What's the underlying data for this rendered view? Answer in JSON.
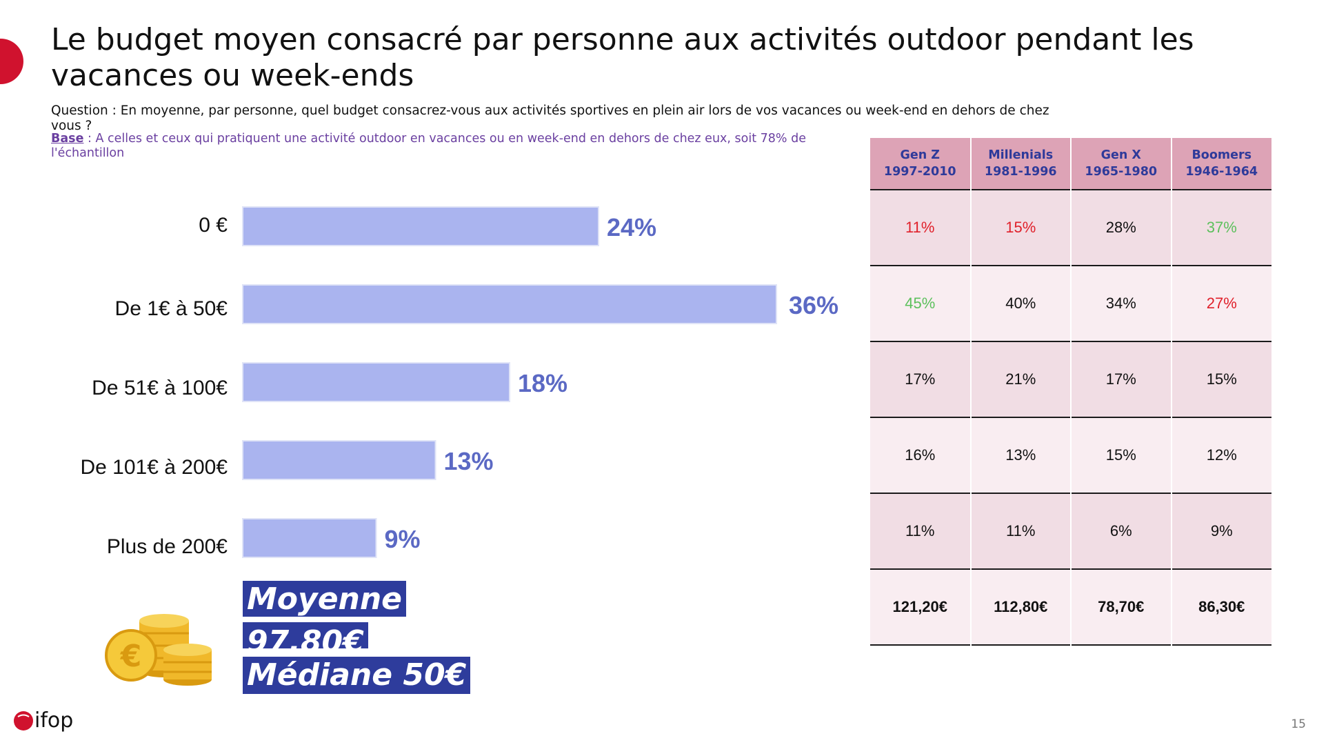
{
  "title": "Le budget moyen consacré par personne aux activités outdoor pendant les vacances ou week-ends",
  "question": "Question : En moyenne, par personne, quel budget consacrez-vous aux activités sportives en plein air lors de vos vacances ou week-end en dehors de chez vous ?",
  "base": {
    "label": "Base",
    "text": " : A celles et ceux qui pratiquent une activité outdoor en vacances ou en week-end en dehors de chez eux, soit 78% de l'échantillon"
  },
  "chart_data": {
    "type": "bar",
    "orientation": "horizontal",
    "categories": [
      "0 €",
      "De 1€ à 50€",
      "De 51€ à 100€",
      "De 101€ à 200€",
      "Plus de 200€"
    ],
    "values": [
      24,
      36,
      18,
      13,
      9
    ],
    "value_labels": [
      "24%",
      "36%",
      "18%",
      "13%",
      "9%"
    ],
    "unit": "%",
    "bar_color": "#aab4ef",
    "label_color": "#5b69c4"
  },
  "stats": {
    "mean_label": "Moyenne",
    "mean_value": "97,80€",
    "median": "Médiane 50€",
    "color": "#2e3c9c"
  },
  "table": {
    "headers": [
      {
        "name": "Gen Z",
        "years": "1997-2010"
      },
      {
        "name": "Millenials",
        "years": "1981-1996"
      },
      {
        "name": "Gen X",
        "years": "1965-1980"
      },
      {
        "name": "Boomers",
        "years": "1946-1964"
      }
    ],
    "rows": [
      [
        {
          "v": "11%",
          "c": "red"
        },
        {
          "v": "15%",
          "c": "red"
        },
        {
          "v": "28%",
          "c": ""
        },
        {
          "v": "37%",
          "c": "green"
        }
      ],
      [
        {
          "v": "45%",
          "c": "green"
        },
        {
          "v": "40%",
          "c": ""
        },
        {
          "v": "34%",
          "c": ""
        },
        {
          "v": "27%",
          "c": "red"
        }
      ],
      [
        {
          "v": "17%",
          "c": ""
        },
        {
          "v": "21%",
          "c": ""
        },
        {
          "v": "17%",
          "c": ""
        },
        {
          "v": "15%",
          "c": ""
        }
      ],
      [
        {
          "v": "16%",
          "c": ""
        },
        {
          "v": "13%",
          "c": ""
        },
        {
          "v": "15%",
          "c": ""
        },
        {
          "v": "12%",
          "c": ""
        }
      ],
      [
        {
          "v": "11%",
          "c": ""
        },
        {
          "v": "11%",
          "c": ""
        },
        {
          "v": "6%",
          "c": ""
        },
        {
          "v": "9%",
          "c": ""
        }
      ]
    ],
    "totals": [
      "121,20€",
      "112,80€",
      "78,70€",
      "86,30€"
    ]
  },
  "logo_text": "ifop",
  "page_number": "15",
  "icons": {
    "coins": "euro-coins-icon",
    "logo": "ifop-logo"
  }
}
